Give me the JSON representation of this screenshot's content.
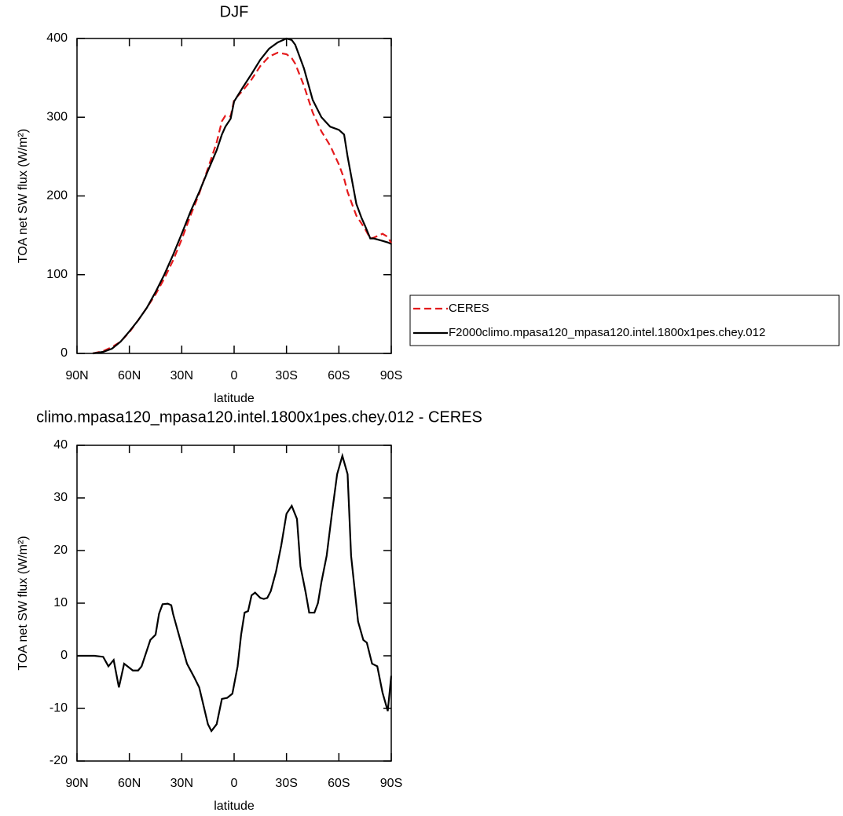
{
  "chart_data": [
    {
      "type": "line",
      "title": "DJF",
      "xlabel": "latitude",
      "ylabel": "TOA net SW flux (W/m²)",
      "x": [
        81,
        75,
        70,
        65,
        60,
        55,
        50,
        45,
        40,
        35,
        30,
        25,
        20,
        15,
        10,
        7,
        5,
        2,
        0,
        -5,
        -10,
        -15,
        -20,
        -25,
        -30,
        -33,
        -35,
        -40,
        -45,
        -50,
        -55,
        -60,
        -63,
        -65,
        -70,
        -73,
        -75,
        -78,
        -80,
        -85,
        -88,
        -90
      ],
      "series": [
        {
          "name": "CERES",
          "color": "#e41a1c",
          "linestyle": "dashed",
          "values": [
            0,
            3,
            8,
            15,
            27,
            42,
            58,
            75,
            95,
            118,
            145,
            175,
            203,
            235,
            268,
            295,
            302,
            301,
            322,
            334,
            348,
            365,
            377,
            382,
            380,
            375,
            368,
            340,
            306,
            282,
            264,
            240,
            222,
            205,
            175,
            165,
            158,
            146,
            147,
            152,
            148,
            140
          ]
        },
        {
          "name": "F2000climo.mpasa120_mpasa120.intel.1800x1pes.chey.012",
          "color": "#000000",
          "linestyle": "solid",
          "values": [
            0,
            2,
            6,
            15,
            28,
            42,
            58,
            78,
            100,
            125,
            152,
            180,
            205,
            232,
            258,
            278,
            288,
            298,
            320,
            338,
            355,
            373,
            387,
            395,
            400,
            398,
            392,
            362,
            322,
            300,
            288,
            284,
            278,
            250,
            190,
            172,
            162,
            146,
            146,
            143,
            141,
            139
          ]
        }
      ],
      "xlim": [
        90,
        -90
      ],
      "xticks": [
        {
          "value": 90,
          "label": "90N"
        },
        {
          "value": 60,
          "label": "60N"
        },
        {
          "value": 30,
          "label": "30N"
        },
        0,
        {
          "value": -30,
          "label": "30S"
        },
        {
          "value": -60,
          "label": "60S"
        },
        {
          "value": -90,
          "label": "90S"
        }
      ],
      "ylim": [
        0,
        400
      ],
      "yticks": [
        0,
        100,
        200,
        300,
        400
      ],
      "legend": "right"
    },
    {
      "type": "line",
      "title": "climo.mpasa120_mpasa120.intel.1800x1pes.chey.012 - CERES",
      "xlabel": "latitude",
      "ylabel": "TOA net SW flux (W/m²)",
      "x": [
        90,
        80,
        75,
        72,
        69,
        66,
        63,
        58,
        55,
        53,
        50,
        48,
        45,
        43,
        41,
        38,
        36,
        35,
        30,
        27,
        23,
        20,
        15,
        13,
        10,
        7,
        4,
        1,
        -2,
        -4,
        -6,
        -8,
        -10,
        -12,
        -15,
        -17,
        -19,
        -21,
        -24,
        -27,
        -30,
        -33,
        -36,
        -38,
        -41,
        -43,
        -46,
        -48,
        -50,
        -53,
        -56,
        -59,
        -62,
        -65,
        -67,
        -71,
        -74,
        -76,
        -79,
        -82,
        -85,
        -88,
        -90
      ],
      "series": [
        {
          "color": "#000000",
          "linestyle": "solid",
          "values": [
            0,
            0,
            -0.2,
            -2,
            -0.8,
            -6,
            -1.5,
            -2.8,
            -2.8,
            -2,
            1,
            3,
            4,
            8,
            9.8,
            9.9,
            9.6,
            8,
            2,
            -1.5,
            -4,
            -6,
            -13,
            -14.3,
            -13,
            -8.2,
            -8,
            -7.2,
            -2,
            4,
            8.2,
            8.5,
            11.5,
            12,
            11,
            10.8,
            11,
            12.3,
            16,
            21,
            27,
            28.5,
            26,
            17,
            12,
            8.2,
            8.2,
            10,
            14,
            19,
            27,
            34.5,
            38,
            34.5,
            19,
            6.5,
            3,
            2.5,
            -1.5,
            -2,
            -7,
            -10.5,
            -3.8
          ]
        }
      ],
      "xlim": [
        90,
        -90
      ],
      "xticks": [
        {
          "value": 90,
          "label": "90N"
        },
        {
          "value": 60,
          "label": "60N"
        },
        {
          "value": 30,
          "label": "30N"
        },
        0,
        {
          "value": -30,
          "label": "30S"
        },
        {
          "value": -60,
          "label": "60S"
        },
        {
          "value": -90,
          "label": "90S"
        }
      ],
      "ylim": [
        -20,
        40
      ],
      "yticks": [
        -20,
        -10,
        0,
        10,
        20,
        30,
        40
      ]
    }
  ]
}
